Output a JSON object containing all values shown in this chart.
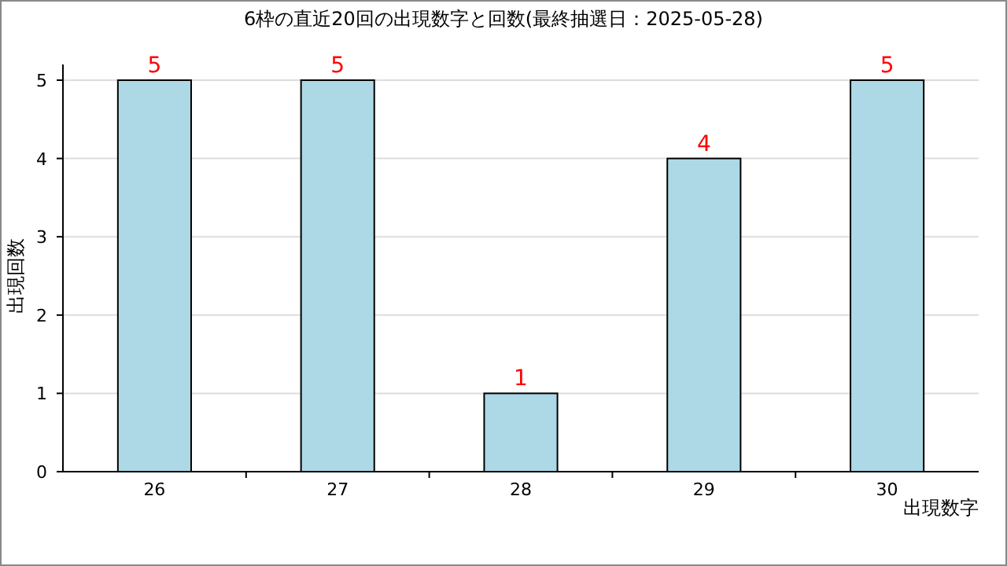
{
  "chart_data": {
    "type": "bar",
    "title": "6枠の直近20回の出現数字と回数(最終抽選日：2025-05-28)",
    "xlabel": "出現数字",
    "ylabel": "出現回数",
    "categories": [
      "26",
      "27",
      "28",
      "29",
      "30"
    ],
    "values": [
      5,
      5,
      1,
      4,
      5
    ],
    "color": "#add8e6",
    "ylim": [
      0,
      5
    ],
    "yticks": [
      0,
      1,
      2,
      3,
      4,
      5
    ],
    "grid": "y",
    "data_labels": true
  }
}
